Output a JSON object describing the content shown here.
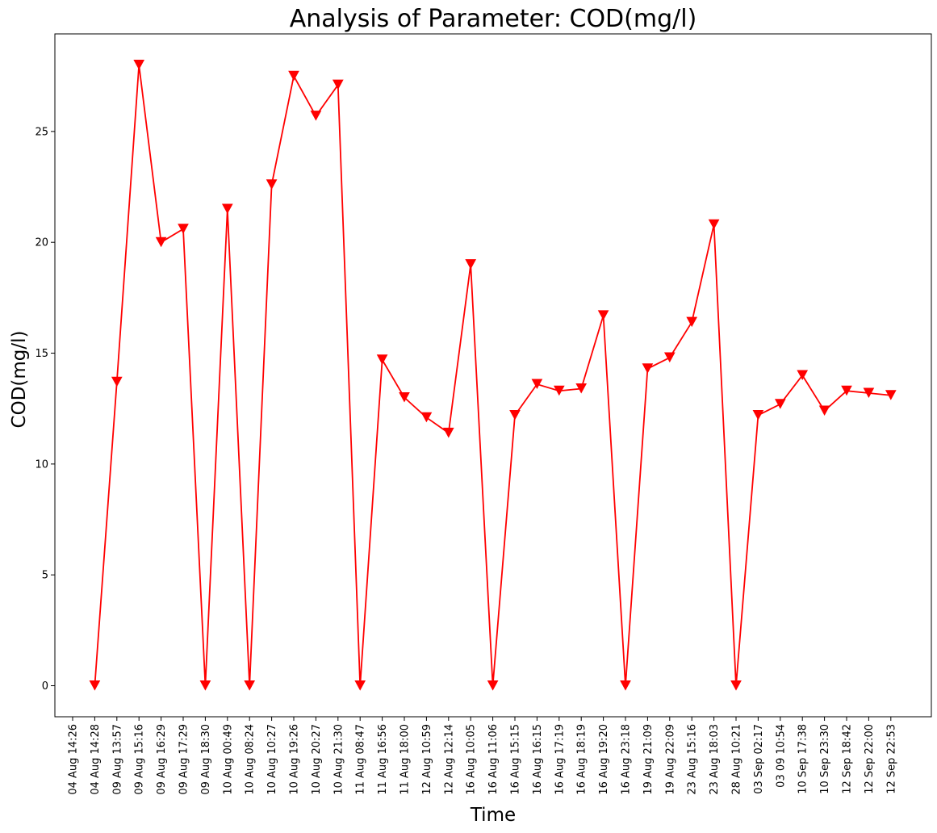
{
  "chart_data": {
    "type": "line",
    "title": "Analysis of Parameter: COD(mg/l)",
    "xlabel": "Time",
    "ylabel": "COD(mg/l)",
    "ylim": [
      -1.4,
      29.4
    ],
    "yticks": [
      0,
      5,
      10,
      15,
      20,
      25
    ],
    "grid": false,
    "legend": "none",
    "line_color": "#ff0000",
    "marker": "triangle-down",
    "categories": [
      "04 Aug 14:26",
      "04 Aug 14:28",
      "09 Aug 13:57",
      "09 Aug 15:16",
      "09 Aug 16:29",
      "09 Aug 17:29",
      "09 Aug 18:30",
      "10 Aug 00:49",
      "10 Aug 08:24",
      "10 Aug 10:27",
      "10 Aug 19:26",
      "10 Aug 20:27",
      "10 Aug 21:30",
      "11 Aug 08:47",
      "11 Aug 16:56",
      "11 Aug 18:00",
      "12 Aug 10:59",
      "12 Aug 12:14",
      "16 Aug 10:05",
      "16 Aug 11:06",
      "16 Aug 15:15",
      "16 Aug 16:15",
      "16 Aug 17:19",
      "16 Aug 18:19",
      "16 Aug 19:20",
      "16 Aug 23:18",
      "19 Aug 21:09",
      "19 Aug 22:09",
      "23 Aug 15:16",
      "23 Aug 18:03",
      "28 Aug 10:21",
      "03 Sep 02:17",
      "03 09 10:54",
      "10 Sep 17:38",
      "10 Sep 23:30",
      "12 Sep 18:42",
      "12 Sep 22:00",
      "12 Sep 22:53"
    ],
    "series": [
      {
        "values": [
          null,
          0,
          13.7,
          28.0,
          20.0,
          20.6,
          0,
          21.5,
          0,
          22.6,
          27.5,
          25.7,
          27.1,
          0,
          14.7,
          13.0,
          12.1,
          11.4,
          19.0,
          0,
          12.2,
          13.6,
          13.3,
          13.4,
          16.7,
          0,
          14.3,
          14.8,
          16.4,
          20.8,
          0,
          12.2,
          12.7,
          14.0,
          12.4,
          13.3,
          13.2,
          13.1
        ]
      }
    ]
  }
}
